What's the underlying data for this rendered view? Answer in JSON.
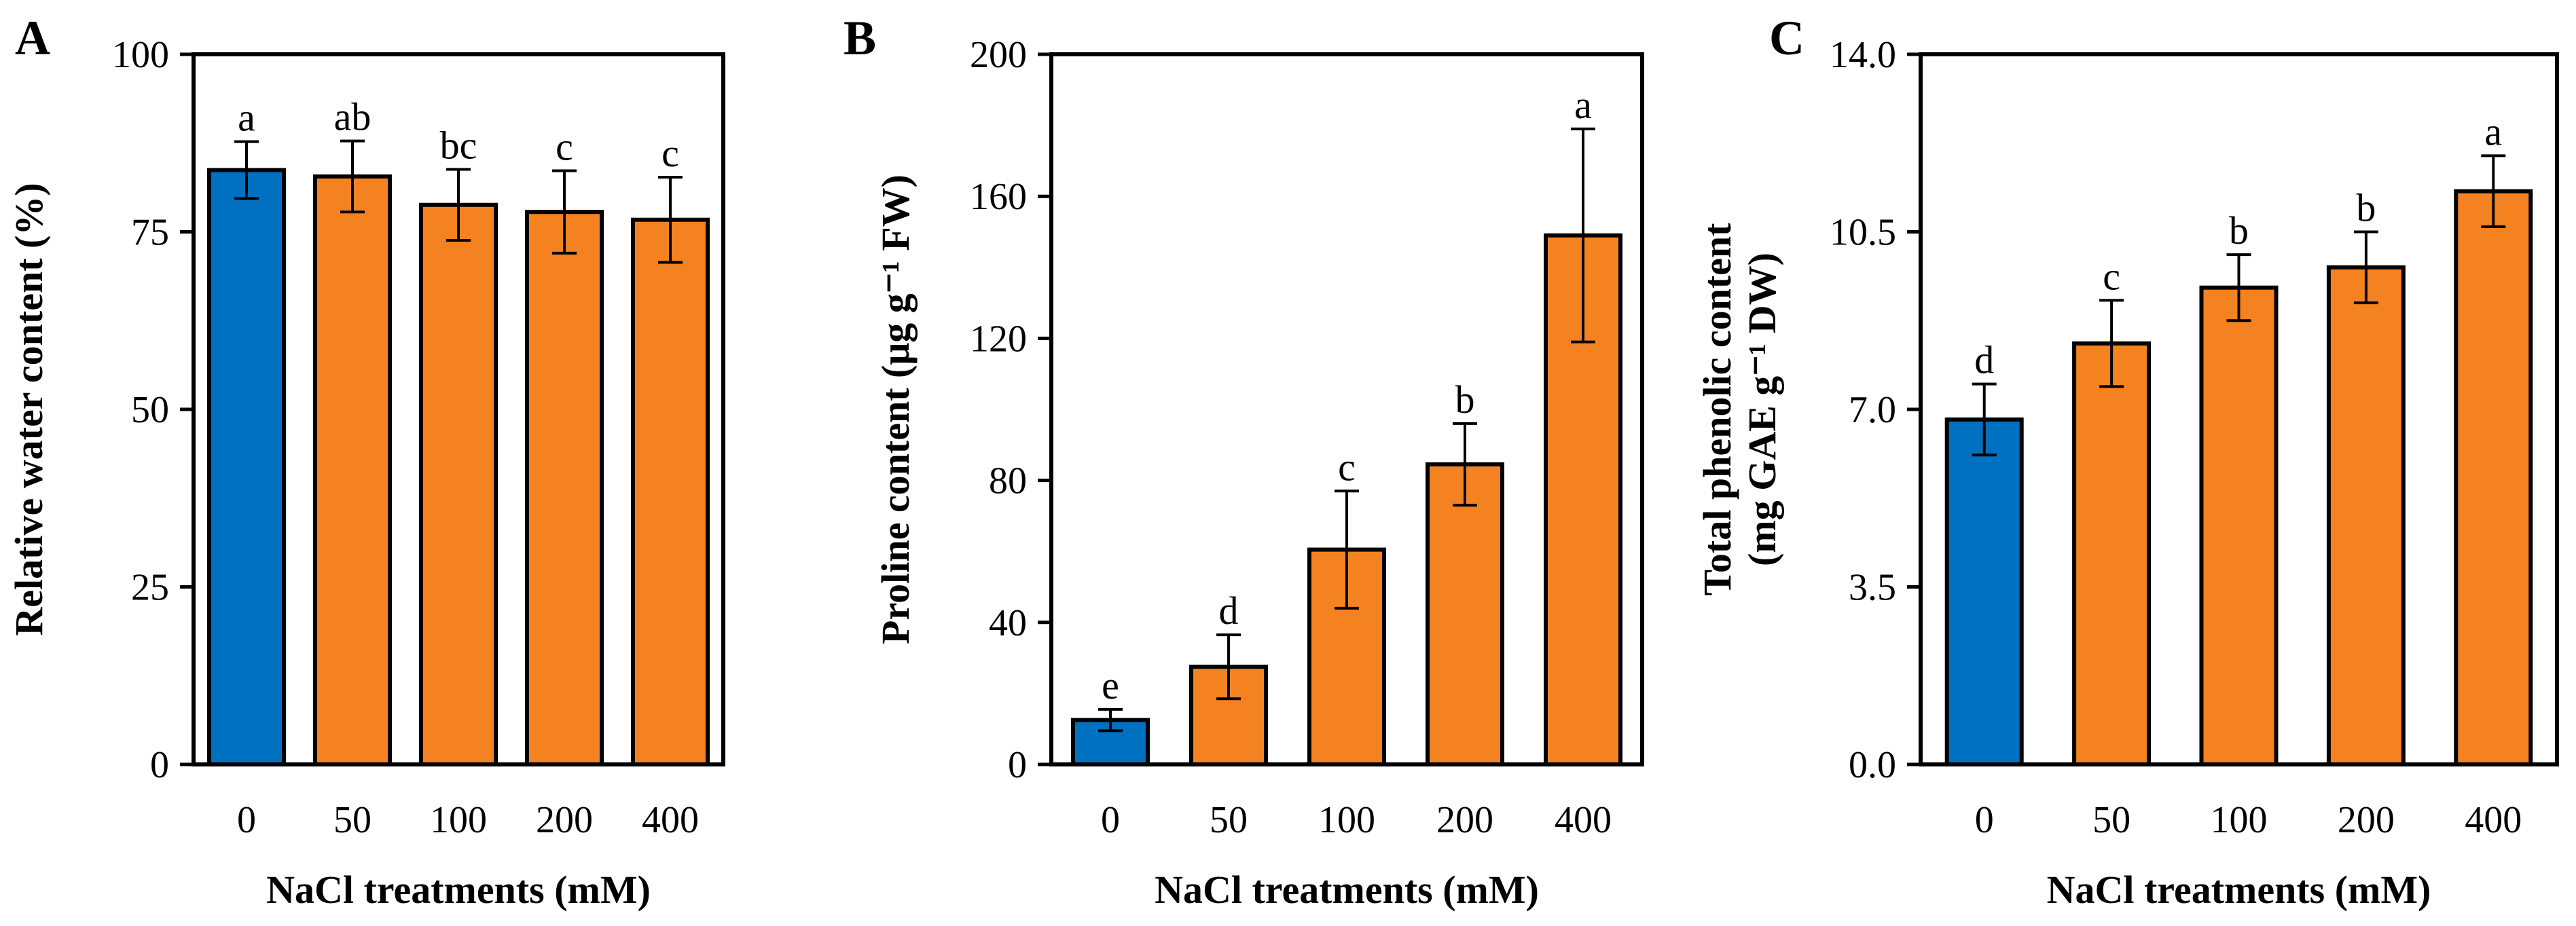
{
  "colors": {
    "control": "#0070C0",
    "treatment": "#F58220"
  },
  "chart_data": [
    {
      "type": "bar",
      "panel": "A",
      "categories": [
        "0",
        "50",
        "100",
        "200",
        "400"
      ],
      "values": [
        83.7,
        82.8,
        78.8,
        77.8,
        76.7
      ],
      "errors": [
        4.0,
        5.0,
        5.0,
        5.8,
        6.0
      ],
      "sig_letters": [
        "a",
        "ab",
        "bc",
        "c",
        "c"
      ],
      "ylim": [
        0,
        100
      ],
      "yticks": [
        "0",
        "25",
        "50",
        "75",
        "100"
      ],
      "xlabel": "NaCl treatments (mM)",
      "ylabel_lines": [
        "Relative water content (%)"
      ]
    },
    {
      "type": "bar",
      "panel": "B",
      "categories": [
        "0",
        "50",
        "100",
        "200",
        "400"
      ],
      "values": [
        12.5,
        27.5,
        60.5,
        84.5,
        149.0
      ],
      "errors": [
        3.0,
        9.0,
        16.5,
        11.5,
        30.0
      ],
      "sig_letters": [
        "e",
        "d",
        "c",
        "b",
        "a"
      ],
      "ylim": [
        0,
        200
      ],
      "yticks": [
        "0",
        "40",
        "80",
        "120",
        "160",
        "200"
      ],
      "xlabel": "NaCl treatments (mM)",
      "ylabel_lines": [
        "Proline content (μg g⁻¹ FW)"
      ]
    },
    {
      "type": "bar",
      "panel": "C",
      "categories": [
        "0",
        "50",
        "100",
        "200",
        "400"
      ],
      "values": [
        6.8,
        8.3,
        9.4,
        9.8,
        11.3
      ],
      "errors": [
        0.7,
        0.85,
        0.65,
        0.7,
        0.7
      ],
      "sig_letters": [
        "d",
        "c",
        "b",
        "b",
        "a"
      ],
      "ylim": [
        0,
        14
      ],
      "yticks": [
        "0.0",
        "3.5",
        "7.0",
        "10.5",
        "14.0"
      ],
      "xlabel": "NaCl treatments (mM)",
      "ylabel_lines": [
        "Total phenolic content",
        "(mg GAE g⁻¹ DW)"
      ]
    }
  ]
}
